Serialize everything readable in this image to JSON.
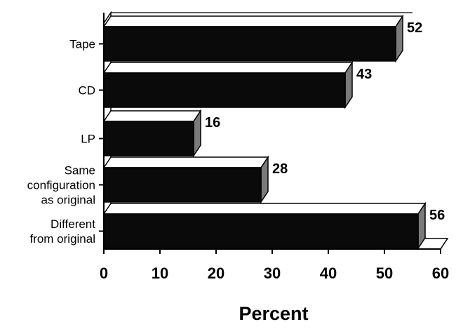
{
  "chart_data": {
    "type": "bar",
    "orientation": "horizontal",
    "style": "3d",
    "categories": [
      [
        "Tape"
      ],
      [
        "CD"
      ],
      [
        "LP"
      ],
      [
        "Same",
        "configuration",
        "as original"
      ],
      [
        "Different",
        "from original"
      ]
    ],
    "values": [
      52,
      43,
      16,
      28,
      56
    ],
    "xlabel": "Percent",
    "ylabel": "",
    "title": "",
    "xlim": [
      0,
      60
    ],
    "xticks": [
      "0",
      "10",
      "20",
      "30",
      "40",
      "50",
      "60"
    ],
    "data_labels": [
      "52",
      "43",
      "16",
      "28",
      "56"
    ],
    "grid": false,
    "legend": "none",
    "colors": {
      "bar_front": "#0a0a0a",
      "bar_top": "#ffffff",
      "bar_side": "#7a7a7a",
      "axis": "#000000"
    }
  }
}
